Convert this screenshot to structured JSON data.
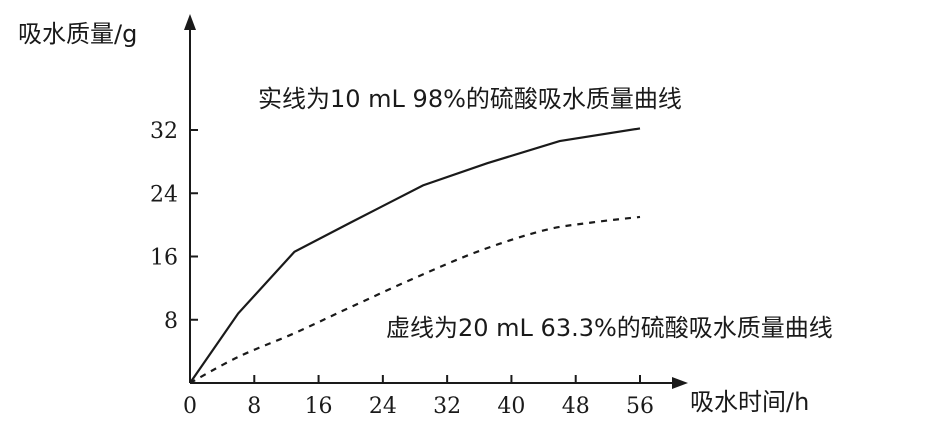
{
  "chart_data": {
    "type": "line",
    "title": "",
    "xlabel": "吸水时间/h",
    "ylabel": "吸水质量/g",
    "xlim": [
      0,
      56
    ],
    "ylim": [
      0,
      32
    ],
    "x_ticks": [
      0,
      8,
      16,
      24,
      32,
      40,
      48,
      56
    ],
    "y_ticks": [
      8,
      16,
      24,
      32
    ],
    "origin_label": "0",
    "grid": false,
    "legend": "none",
    "series": [
      {
        "style": "solid",
        "x": [
          0,
          6,
          13,
          20,
          29,
          37,
          46,
          56
        ],
        "y": [
          0,
          8.8,
          16.6,
          20.3,
          25.0,
          27.8,
          30.6,
          32.2
        ]
      },
      {
        "style": "dashed",
        "x": [
          0,
          6,
          13,
          20,
          28,
          36,
          44,
          50,
          56
        ],
        "y": [
          0,
          3.3,
          6.3,
          9.6,
          13.3,
          16.7,
          19.3,
          20.3,
          21.0
        ]
      }
    ],
    "annotations": [
      {
        "text": "实线为10 mL 98%的硫酸吸水质量曲线"
      },
      {
        "text": "虚线为20 mL 63.3%的硫酸吸水质量曲线"
      }
    ]
  }
}
